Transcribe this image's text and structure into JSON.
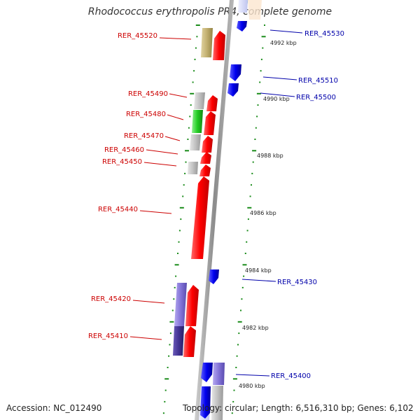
{
  "title": "Rhodococcus erythropolis PR4, complete genome",
  "footer": {
    "accession": "Accession: NC_012490",
    "topology": "Topology: circular; Length: 6,516,310 bp; Genes: 6,102"
  },
  "colors": {
    "forward_gene": "#ff0000",
    "reverse_gene": "#0000ff",
    "left_label": "#cc0000",
    "right_label": "#0000aa",
    "axis": "#999999",
    "ticks": "#1a8c1a",
    "gray_feature": "#bdbdbd",
    "olive_feature": "#c8b878",
    "green_feature": "#33cc33",
    "purple_feature": "#8a7ad8",
    "darkpurple_feature": "#4a3a90",
    "cyan_feature": "#00e5e5"
  },
  "scale_labels": [
    "4992 kbp",
    "4990 kbp",
    "4988 kbp",
    "4986 kbp",
    "4984 kbp",
    "4982 kbp",
    "4980 kbp"
  ],
  "left_genes": [
    "RER_45520",
    "RER_45490",
    "RER_45480",
    "RER_45470",
    "RER_45460",
    "RER_45450",
    "RER_45440",
    "RER_45420",
    "RER_45410"
  ],
  "right_genes": [
    "RER_45530",
    "RER_45510",
    "RER_45500",
    "RER_45430",
    "RER_45400"
  ]
}
